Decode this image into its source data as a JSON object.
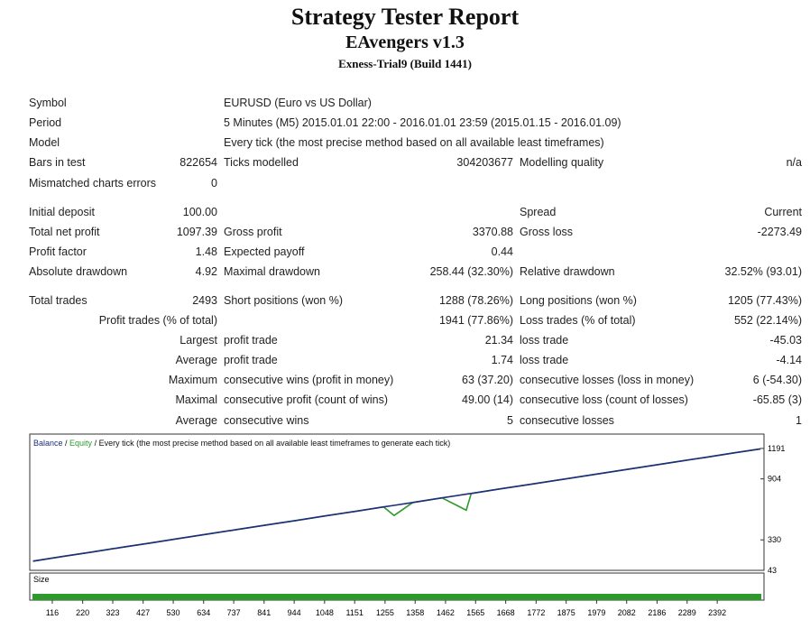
{
  "header": {
    "title": "Strategy Tester Report",
    "subtitle": "EAvengers v1.3",
    "build": "Exness-Trial9 (Build 1441)"
  },
  "report": {
    "rows": [
      [
        "Symbol",
        "EURUSD (Euro vs US Dollar)"
      ],
      [
        "Period",
        "5 Minutes (M5) 2015.01.01 22:00 - 2016.01.01 23:59 (2015.01.15 - 2016.01.09)"
      ],
      [
        "Model",
        "Every tick (the most precise method based on all available least timeframes)"
      ],
      [
        "Bars in test",
        "822654",
        "Ticks modelled",
        "304203677",
        "Modelling quality",
        "n/a"
      ],
      [
        "Mismatched charts errors",
        "0",
        null,
        null,
        null,
        null
      ],
      [
        "Initial deposit",
        "100.00",
        null,
        null,
        "Spread",
        "Current"
      ],
      [
        "Total net profit",
        "1097.39",
        "Gross profit",
        "3370.88",
        "Gross loss",
        "-2273.49"
      ],
      [
        "Profit factor",
        "1.48",
        "Expected payoff",
        "0.44",
        null,
        null
      ],
      [
        "Absolute drawdown",
        "4.92",
        "Maximal drawdown",
        "258.44 (32.30%)",
        "Relative drawdown",
        "32.52% (93.01)"
      ],
      [
        "Total trades",
        "2493",
        "Short positions (won %)",
        "1288 (78.26%)",
        "Long positions (won %)",
        "1205 (77.43%)"
      ],
      [
        null,
        "Profit trades (% of total)",
        "",
        "1941 (77.86%)",
        "Loss trades (% of total)",
        "552 (22.14%)"
      ],
      [
        null,
        "Largest",
        "profit trade",
        "21.34",
        "loss trade",
        "-45.03"
      ],
      [
        null,
        "Average",
        "profit trade",
        "1.74",
        "loss trade",
        "-4.14"
      ],
      [
        null,
        "Maximum",
        "consecutive wins (profit in money)",
        "63 (37.20)",
        "consecutive losses (loss in money)",
        "6 (-54.30)"
      ],
      [
        null,
        "Maximal",
        "consecutive profit (count of wins)",
        "49.00 (14)",
        "consecutive loss (count of losses)",
        "-65.85 (3)"
      ],
      [
        null,
        "Average",
        "consecutive wins",
        "5",
        "consecutive losses",
        "1"
      ]
    ]
  },
  "chart_data": {
    "type": "line",
    "legend": [
      "Balance",
      "Equity",
      "Every tick (the most precise method based on all available least timeframes to generate each tick)"
    ],
    "x": [
      50,
      150,
      250,
      350,
      450,
      550,
      650,
      750,
      850,
      950,
      1050,
      1150,
      1250,
      1286,
      1350,
      1450,
      1533,
      1550,
      1650,
      1750,
      1850,
      1950,
      2050,
      2150,
      2250,
      2350,
      2450,
      2540
    ],
    "series": [
      {
        "name": "Balance",
        "color": "#1f2d7a",
        "values": [
          130,
          173,
          215,
          258,
          300,
          343,
          385,
          428,
          470,
          512,
          555,
          597,
          640,
          655,
          682,
          725,
          760,
          767,
          810,
          852,
          894,
          937,
          979,
          1022,
          1064,
          1106,
          1149,
          1187
        ]
      },
      {
        "name": "Equity",
        "color": "#2e9a2e",
        "values": [
          130,
          173,
          215,
          258,
          300,
          343,
          385,
          428,
          470,
          512,
          555,
          597,
          640,
          560,
          682,
          725,
          610,
          767,
          810,
          852,
          894,
          937,
          979,
          1022,
          1064,
          1106,
          1149,
          1187
        ]
      }
    ],
    "xlim": [
      42,
      2549
    ],
    "ylim": [
      43,
      1309
    ],
    "yticks": [
      43,
      330,
      904,
      1191
    ],
    "xticks": [
      116,
      220,
      323,
      427,
      530,
      634,
      737,
      841,
      944,
      1048,
      1151,
      1255,
      1358,
      1462,
      1565,
      1668,
      1772,
      1875,
      1979,
      2082,
      2186,
      2289,
      2392
    ],
    "size_label": "Size"
  }
}
